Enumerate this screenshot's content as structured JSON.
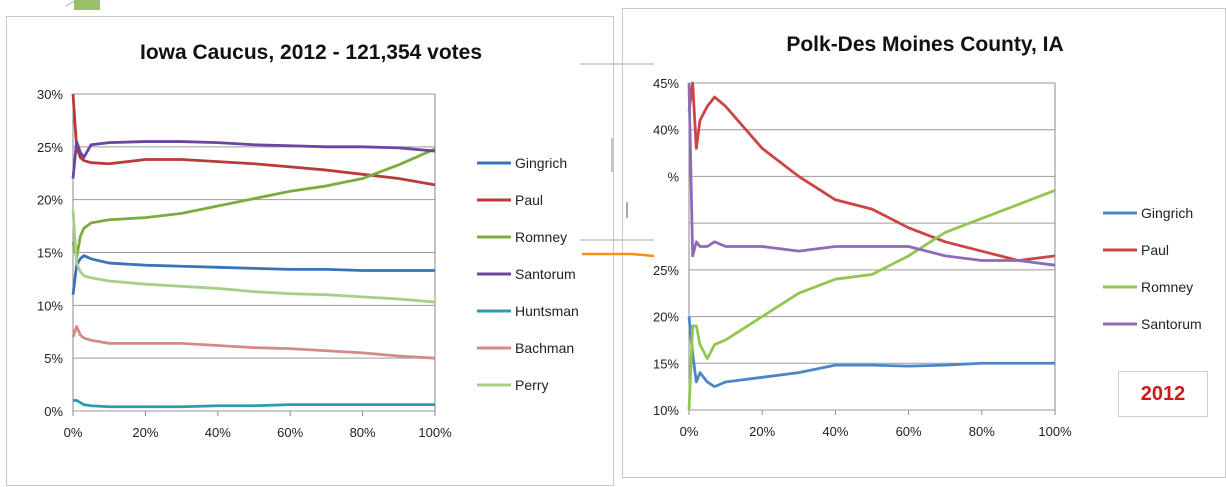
{
  "badge": {
    "year": "2012"
  },
  "colors": {
    "Gingrich": "#3b73b8",
    "Paul": "#b83a3a",
    "Romney": "#7aad3c",
    "Santorum": "#6b46a0",
    "Huntsman": "#2c9bb0",
    "Bachman": "#d48a8a",
    "Perry": "#a9cf87",
    "Santorum_right": "#8e6bb8",
    "Romney_right": "#93c64f",
    "Paul_right": "#cc4444",
    "Gingrich_right": "#4a86c8"
  },
  "chart_data": [
    {
      "type": "line",
      "title": "Iowa Caucus, 2012 - 121,354 votes",
      "xlabel": "",
      "ylabel": "",
      "x": [
        0,
        1,
        2,
        3,
        5,
        10,
        20,
        30,
        40,
        50,
        60,
        70,
        80,
        90,
        100
      ],
      "xlim": [
        0,
        100
      ],
      "ylim": [
        0,
        30
      ],
      "x_ticks": [
        "0%",
        "20%",
        "40%",
        "60%",
        "80%",
        "100%"
      ],
      "y_ticks": [
        "0%",
        "5%",
        "10%",
        "15%",
        "20%",
        "25%",
        "30%"
      ],
      "legend": "right",
      "grid": "horizontal",
      "series": [
        {
          "name": "Gingrich",
          "values": [
            11.0,
            13.8,
            14.4,
            14.7,
            14.4,
            14.0,
            13.8,
            13.7,
            13.6,
            13.5,
            13.4,
            13.4,
            13.3,
            13.3,
            13.3
          ]
        },
        {
          "name": "Paul",
          "values": [
            30.0,
            25.0,
            24.0,
            23.7,
            23.5,
            23.4,
            23.8,
            23.8,
            23.6,
            23.4,
            23.1,
            22.8,
            22.4,
            22.0,
            21.4
          ]
        },
        {
          "name": "Romney",
          "values": [
            16.0,
            14.5,
            16.5,
            17.3,
            17.8,
            18.1,
            18.3,
            18.7,
            19.4,
            20.1,
            20.8,
            21.3,
            22.0,
            23.3,
            24.8
          ]
        },
        {
          "name": "Santorum",
          "values": [
            22.0,
            25.5,
            24.5,
            24.0,
            25.2,
            25.4,
            25.5,
            25.5,
            25.4,
            25.2,
            25.1,
            25.0,
            25.0,
            24.9,
            24.6
          ]
        },
        {
          "name": "Huntsman",
          "values": [
            1.0,
            1.0,
            0.8,
            0.6,
            0.5,
            0.4,
            0.4,
            0.4,
            0.5,
            0.5,
            0.6,
            0.6,
            0.6,
            0.6,
            0.6
          ]
        },
        {
          "name": "Bachman",
          "values": [
            7.0,
            8.0,
            7.2,
            6.9,
            6.7,
            6.4,
            6.4,
            6.4,
            6.2,
            6.0,
            5.9,
            5.7,
            5.5,
            5.2,
            5.0
          ]
        },
        {
          "name": "Perry",
          "values": [
            19.0,
            14.0,
            13.2,
            12.8,
            12.6,
            12.3,
            12.0,
            11.8,
            11.6,
            11.3,
            11.1,
            11.0,
            10.8,
            10.6,
            10.3
          ]
        }
      ]
    },
    {
      "type": "line",
      "title": "Polk-Des Moines County, IA",
      "xlabel": "",
      "ylabel": "",
      "x": [
        0,
        1,
        2,
        3,
        5,
        7,
        10,
        20,
        30,
        40,
        50,
        60,
        70,
        80,
        90,
        100
      ],
      "xlim": [
        0,
        100
      ],
      "ylim": [
        10,
        45
      ],
      "x_ticks": [
        "0%",
        "20%",
        "40%",
        "60%",
        "80%",
        "100%"
      ],
      "y_ticks": [
        "10%",
        "15%",
        "20%",
        "25%",
        "",
        "%",
        "40%",
        "45%"
      ],
      "legend": "right",
      "grid": "horizontal",
      "series": [
        {
          "name": "Gingrich",
          "values": [
            20.0,
            16.0,
            13.0,
            14.0,
            13.0,
            12.5,
            13.0,
            13.5,
            14.0,
            14.8,
            14.8,
            14.7,
            14.8,
            15.0,
            15.0,
            15.0
          ]
        },
        {
          "name": "Paul",
          "values": [
            42.0,
            45.0,
            38.0,
            41.0,
            42.5,
            43.5,
            42.5,
            38.0,
            35.0,
            32.5,
            31.5,
            29.5,
            28.0,
            27.0,
            26.0,
            26.5
          ]
        },
        {
          "name": "Romney",
          "values": [
            10.0,
            19.0,
            19.0,
            17.0,
            15.5,
            17.0,
            17.5,
            20.0,
            22.5,
            24.0,
            24.5,
            26.5,
            29.0,
            30.5,
            32.0,
            33.5
          ]
        },
        {
          "name": "Santorum",
          "values": [
            45.0,
            26.5,
            28.0,
            27.5,
            27.5,
            28.0,
            27.5,
            27.5,
            27.0,
            27.5,
            27.5,
            27.5,
            26.5,
            26.0,
            26.0,
            25.5
          ]
        }
      ]
    }
  ]
}
